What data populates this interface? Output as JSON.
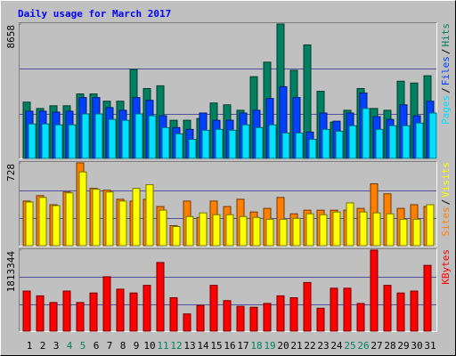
{
  "chart_data": [
    {
      "type": "bar",
      "title": "Daily usage for March 2017",
      "ylim": [
        0,
        8658
      ],
      "yticks": [
        8658
      ],
      "legend_reversed": true,
      "legend_separator": "/",
      "series": [
        {
          "name": "Hits",
          "color": "#008060",
          "values": [
            3627,
            3218,
            3393,
            3393,
            4154,
            4154,
            3686,
            3686,
            5733,
            4505,
            4680,
            2457,
            2457,
            2574,
            3569,
            3452,
            3101,
            5265,
            6201,
            8658,
            5675,
            7313,
            4329,
            2340,
            3101,
            4505,
            3218,
            3101,
            4973,
            4856,
            5324
          ]
        },
        {
          "name": "Files",
          "color": "#0040ff",
          "values": [
            3042,
            3042,
            2984,
            3042,
            3920,
            3920,
            3276,
            3101,
            3920,
            3744,
            2750,
            1989,
            1872,
            2925,
            2457,
            2457,
            2925,
            3101,
            3861,
            4622,
            3920,
            1697,
            2925,
            2399,
            2925,
            4212,
            2691,
            2516,
            3452,
            2750,
            3686
          ]
        },
        {
          "name": "Pages",
          "color": "#00e0ff",
          "values": [
            2223,
            2223,
            2165,
            2165,
            2867,
            2867,
            2516,
            2457,
            2867,
            2750,
            1989,
            1580,
            1229,
            1814,
            1872,
            1814,
            2165,
            1989,
            2165,
            1638,
            1638,
            1229,
            1872,
            1755,
            2106,
            3218,
            1872,
            2106,
            2106,
            2282,
            2925
          ]
        }
      ]
    },
    {
      "type": "bar",
      "ylim": [
        0,
        728
      ],
      "yticks": [
        728
      ],
      "legend_reversed": false,
      "legend_separator": "/",
      "series": [
        {
          "name": "Sites",
          "color": "#ff8000",
          "values": [
            392,
            440,
            360,
            472,
            728,
            504,
            488,
            408,
            392,
            408,
            344,
            176,
            392,
            248,
            392,
            344,
            408,
            296,
            328,
            424,
            280,
            312,
            312,
            312,
            312,
            328,
            544,
            456,
            328,
            360,
            344
          ]
        },
        {
          "name": "Visits",
          "color": "#ffff00",
          "values": [
            384,
            424,
            352,
            464,
            648,
            496,
            472,
            392,
            504,
            536,
            312,
            168,
            256,
            288,
            272,
            272,
            256,
            248,
            232,
            232,
            240,
            280,
            272,
            296,
            376,
            296,
            288,
            280,
            232,
            232,
            360
          ]
        }
      ]
    },
    {
      "type": "bar",
      "ylim": [
        0,
        1813344
      ],
      "yticks": [
        1813344
      ],
      "legend_reversed": false,
      "categories": [
        "1",
        "2",
        "3",
        "4",
        "5",
        "6",
        "7",
        "8",
        "9",
        "10",
        "11",
        "12",
        "13",
        "14",
        "15",
        "16",
        "17",
        "18",
        "19",
        "20",
        "21",
        "22",
        "23",
        "24",
        "25",
        "26",
        "27",
        "28",
        "29",
        "30",
        "31"
      ],
      "category_colors": [
        "#000000",
        "#000000",
        "#000000",
        "#00805c",
        "#00805c",
        "#000000",
        "#000000",
        "#000000",
        "#000000",
        "#000000",
        "#00805c",
        "#00805c",
        "#000000",
        "#000000",
        "#000000",
        "#000000",
        "#000000",
        "#00805c",
        "#00805c",
        "#000000",
        "#000000",
        "#000000",
        "#000000",
        "#000000",
        "#00805c",
        "#00805c",
        "#000000",
        "#000000",
        "#000000",
        "#000000",
        "#000000"
      ],
      "series": [
        {
          "name": "KBytes",
          "color": "#ff0000",
          "values": [
            896000,
            789333,
            640000,
            896000,
            640000,
            853333,
            1216000,
            938667,
            853333,
            1024000,
            1536000,
            746667,
            384000,
            576000,
            1024000,
            682667,
            554667,
            533333,
            618667,
            789333,
            746667,
            1088000,
            512000,
            960000,
            960000,
            618667,
            1813344,
            1024000,
            853333,
            896000,
            1472000
          ]
        }
      ]
    }
  ]
}
